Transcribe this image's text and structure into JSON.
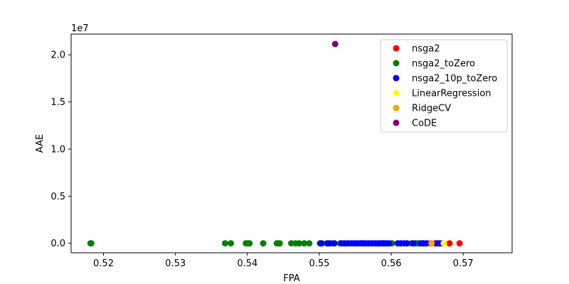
{
  "chart_data": {
    "type": "scatter",
    "title": "",
    "xlabel": "FPA",
    "ylabel": "AAE",
    "y_offset_label": "1e7",
    "xlim": [
      0.5155,
      0.5768
    ],
    "ylim": [
      -1000000,
      22200000
    ],
    "x_ticks": [
      0.52,
      0.53,
      0.54,
      0.55,
      0.56,
      0.57
    ],
    "x_tick_labels": [
      "0.52",
      "0.53",
      "0.54",
      "0.55",
      "0.56",
      "0.57"
    ],
    "y_ticks": [
      0,
      5000000,
      10000000,
      15000000,
      20000000
    ],
    "y_tick_labels": [
      "0.0",
      "0.5",
      "1.0",
      "1.5",
      "2.0"
    ],
    "grid": false,
    "legend_position": "upper-right",
    "series": [
      {
        "name": "nsga2",
        "color": "#ff0000",
        "points": [
          [
            0.5628,
            0
          ],
          [
            0.5644,
            0
          ],
          [
            0.5654,
            0
          ],
          [
            0.5661,
            0
          ],
          [
            0.5666,
            0
          ],
          [
            0.5681,
            0
          ],
          [
            0.5695,
            0
          ]
        ]
      },
      {
        "name": "nsga2_toZero",
        "color": "#008000",
        "points": [
          [
            0.5182,
            0
          ],
          [
            0.5183,
            0
          ],
          [
            0.5369,
            0
          ],
          [
            0.5377,
            0
          ],
          [
            0.5398,
            0
          ],
          [
            0.5401,
            0
          ],
          [
            0.5403,
            0
          ],
          [
            0.5422,
            0
          ],
          [
            0.5441,
            0
          ],
          [
            0.5444,
            0
          ],
          [
            0.5445,
            0
          ],
          [
            0.5461,
            0
          ],
          [
            0.5467,
            0
          ],
          [
            0.5472,
            0
          ],
          [
            0.5479,
            0
          ],
          [
            0.5486,
            0
          ],
          [
            0.5501,
            0
          ],
          [
            0.5504,
            0
          ],
          [
            0.5515,
            0
          ],
          [
            0.5519,
            0
          ],
          [
            0.5529,
            0
          ],
          [
            0.5541,
            0
          ],
          [
            0.5561,
            0
          ],
          [
            0.5588,
            0
          ],
          [
            0.5601,
            0
          ],
          [
            0.5629,
            0
          ],
          [
            0.5634,
            0
          ],
          [
            0.5636,
            0
          ],
          [
            0.5639,
            0
          ]
        ]
      },
      {
        "name": "nsga2_10p_toZero",
        "color": "#0000ff",
        "points": [
          [
            0.5502,
            0
          ],
          [
            0.5511,
            0
          ],
          [
            0.5514,
            0
          ],
          [
            0.5521,
            0
          ],
          [
            0.5531,
            0
          ],
          [
            0.5535,
            0
          ],
          [
            0.5539,
            0
          ],
          [
            0.5545,
            0
          ],
          [
            0.5549,
            0
          ],
          [
            0.5553,
            0
          ],
          [
            0.5557,
            0
          ],
          [
            0.5561,
            0
          ],
          [
            0.5565,
            0
          ],
          [
            0.5569,
            0
          ],
          [
            0.5573,
            0
          ],
          [
            0.5577,
            0
          ],
          [
            0.5581,
            0
          ],
          [
            0.5584,
            0
          ],
          [
            0.5587,
            0
          ],
          [
            0.5589,
            0
          ],
          [
            0.5591,
            0
          ],
          [
            0.5594,
            0
          ],
          [
            0.5597,
            0
          ],
          [
            0.5609,
            0
          ],
          [
            0.5613,
            0
          ],
          [
            0.5618,
            0
          ],
          [
            0.5622,
            0
          ],
          [
            0.5631,
            0
          ],
          [
            0.5641,
            0
          ],
          [
            0.5645,
            0
          ],
          [
            0.5649,
            0
          ],
          [
            0.5663,
            0
          ],
          [
            0.5667,
            0
          ],
          [
            0.5671,
            0
          ]
        ]
      },
      {
        "name": "LinearRegression",
        "color": "#ffff00",
        "points": [
          [
            0.5673,
            0
          ]
        ]
      },
      {
        "name": "RidgeCV",
        "color": "#ffa500",
        "points": [
          [
            0.5656,
            0
          ]
        ]
      },
      {
        "name": "CoDE",
        "color": "#800080",
        "points": [
          [
            0.5522,
            21150000
          ]
        ]
      }
    ]
  }
}
